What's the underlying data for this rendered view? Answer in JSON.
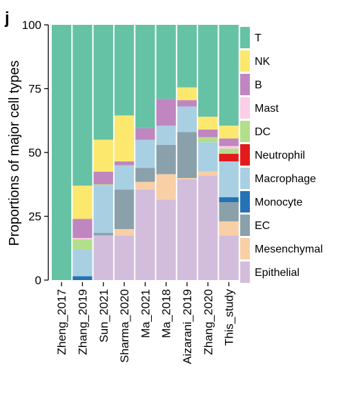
{
  "panel_label": "j",
  "chart_data": {
    "type": "bar",
    "stacked": true,
    "normalized": true,
    "title": "",
    "xlabel": "",
    "ylabel": "Proportions of major cell types",
    "ylim": [
      0,
      100
    ],
    "yticks": [
      "0",
      "25",
      "50",
      "75",
      "100"
    ],
    "grid": false,
    "legend_position": "right",
    "categories": [
      "Zheng_2017",
      "Zhang_2019",
      "Sun_2021",
      "Sharma_2020",
      "Ma_2021",
      "Ma_2018",
      "Aizarani_2019",
      "Zhang_2020",
      "This_study"
    ],
    "series": [
      {
        "name": "Epithelial",
        "color": "#d3bddc",
        "values": [
          0,
          0,
          17.5,
          17.5,
          35.5,
          31.5,
          39.5,
          41,
          17.5
        ]
      },
      {
        "name": "Mesenchymal",
        "color": "#f9cfa5",
        "values": [
          0,
          0,
          0,
          2.5,
          3,
          10,
          0.5,
          1.5,
          5.5
        ]
      },
      {
        "name": "EC",
        "color": "#8aa1ab",
        "values": [
          0,
          0,
          1,
          15.5,
          5.5,
          11.5,
          18,
          0,
          7.5
        ]
      },
      {
        "name": "Monocyte",
        "color": "#2572b4",
        "values": [
          0,
          1.5,
          0,
          0,
          0,
          0,
          0,
          0,
          2
        ]
      },
      {
        "name": "Macrophage",
        "color": "#a9cfe3",
        "values": [
          0,
          10.5,
          18.5,
          9.5,
          11,
          7.5,
          10,
          11.5,
          14
        ]
      },
      {
        "name": "Neutrophil",
        "color": "#e31a1c",
        "values": [
          0,
          0,
          0,
          0,
          0,
          0,
          0,
          0,
          3
        ]
      },
      {
        "name": "DC",
        "color": "#b2df8a",
        "values": [
          0,
          4,
          0.5,
          0,
          0,
          0,
          0,
          2,
          2
        ]
      },
      {
        "name": "Mast",
        "color": "#fbcde6",
        "values": [
          0,
          0.5,
          0,
          0,
          0,
          0,
          0,
          0,
          1
        ]
      },
      {
        "name": "B",
        "color": "#c086c0",
        "values": [
          0,
          7.5,
          5,
          1.5,
          4.5,
          10.5,
          2.5,
          3,
          3
        ]
      },
      {
        "name": "NK",
        "color": "#fde86e",
        "values": [
          0,
          13,
          12.5,
          18,
          0,
          0,
          5,
          5,
          5
        ]
      },
      {
        "name": "T",
        "color": "#66c2a5",
        "values": [
          100,
          63,
          45,
          35.5,
          40.5,
          29,
          24.5,
          36,
          39.5
        ]
      }
    ],
    "legend_order": [
      "T",
      "NK",
      "B",
      "Mast",
      "DC",
      "Neutrophil",
      "Macrophage",
      "Monocyte",
      "EC",
      "Mesenchymal",
      "Epithelial"
    ]
  }
}
